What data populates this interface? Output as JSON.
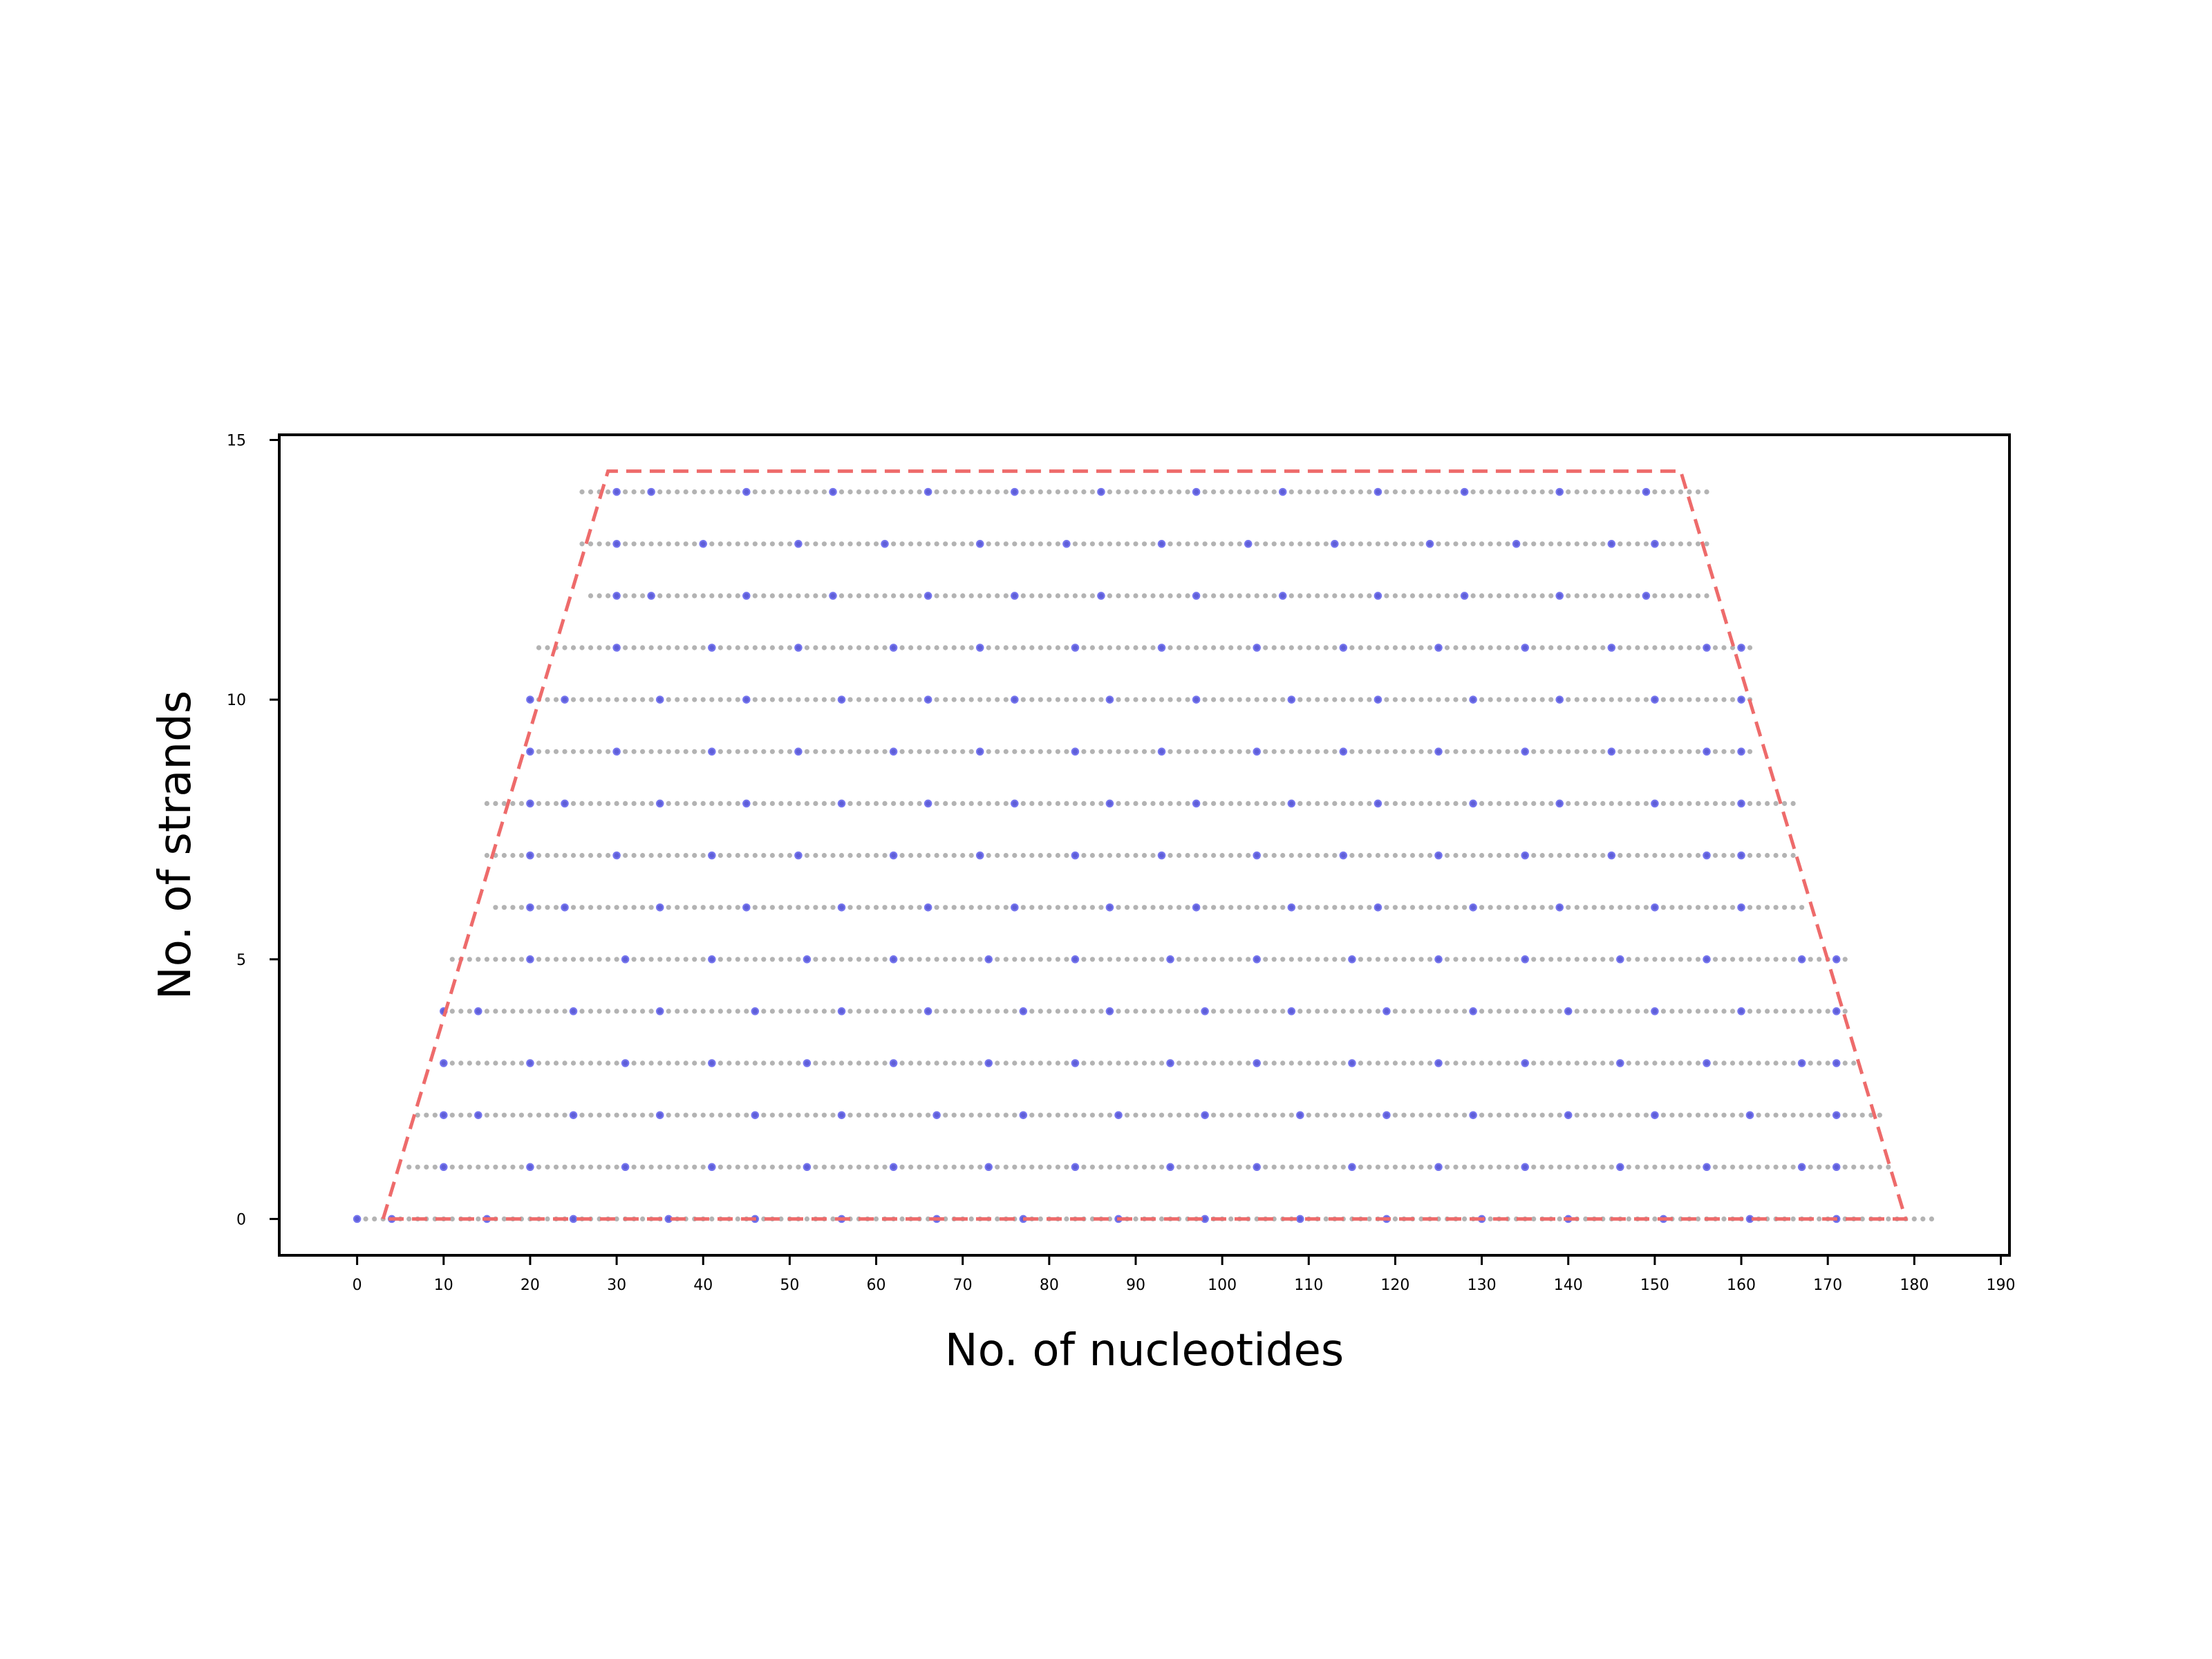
{
  "chart_data": {
    "type": "scatter",
    "title": "",
    "xlabel": "No. of nucleotides",
    "ylabel": "No. of strands",
    "xlim": [
      -9,
      191
    ],
    "ylim": [
      -0.7,
      15.1
    ],
    "x_ticks": [
      0,
      10,
      20,
      30,
      40,
      50,
      60,
      70,
      80,
      90,
      100,
      110,
      120,
      130,
      140,
      150,
      160,
      170,
      180,
      190
    ],
    "y_ticks": [
      0,
      5,
      10,
      15
    ],
    "grid": false,
    "colors": {
      "nucleotide": "#b3b3b3",
      "marker": "#3a3ae8",
      "boundary": "#ee6b6b",
      "axis": "#000000"
    },
    "rows": [
      {
        "strand": 0,
        "start": 0,
        "end": 182,
        "markers": [
          0,
          4,
          15,
          25,
          36,
          46,
          56,
          67,
          77,
          88,
          98,
          109,
          119,
          130,
          140,
          151,
          161,
          171
        ]
      },
      {
        "strand": 1,
        "start": 6,
        "end": 177,
        "markers": [
          10,
          20,
          31,
          41,
          52,
          62,
          73,
          83,
          94,
          104,
          115,
          125,
          135,
          146,
          156,
          167,
          171
        ]
      },
      {
        "strand": 2,
        "start": 7,
        "end": 176,
        "markers": [
          10,
          14,
          25,
          35,
          46,
          56,
          67,
          77,
          88,
          98,
          109,
          119,
          129,
          140,
          150,
          161,
          171
        ]
      },
      {
        "strand": 3,
        "start": 10,
        "end": 173,
        "markers": [
          10,
          20,
          31,
          41,
          52,
          62,
          73,
          83,
          94,
          104,
          115,
          125,
          135,
          146,
          156,
          167,
          171
        ]
      },
      {
        "strand": 4,
        "start": 10,
        "end": 172,
        "markers": [
          10,
          14,
          25,
          35,
          46,
          56,
          66,
          77,
          87,
          98,
          108,
          119,
          129,
          140,
          150,
          160,
          171
        ]
      },
      {
        "strand": 5,
        "start": 11,
        "end": 172,
        "markers": [
          20,
          31,
          41,
          52,
          62,
          73,
          83,
          94,
          104,
          115,
          125,
          135,
          146,
          156,
          167,
          171
        ]
      },
      {
        "strand": 6,
        "start": 16,
        "end": 167,
        "markers": [
          20,
          24,
          35,
          45,
          56,
          66,
          76,
          87,
          97,
          108,
          118,
          129,
          139,
          150,
          160
        ]
      },
      {
        "strand": 7,
        "start": 15,
        "end": 166,
        "markers": [
          20,
          30,
          41,
          51,
          62,
          72,
          83,
          93,
          104,
          114,
          125,
          135,
          145,
          156,
          160
        ]
      },
      {
        "strand": 8,
        "start": 15,
        "end": 166,
        "markers": [
          20,
          24,
          35,
          45,
          56,
          66,
          76,
          87,
          97,
          108,
          118,
          129,
          139,
          150,
          160
        ]
      },
      {
        "strand": 9,
        "start": 20,
        "end": 161,
        "markers": [
          20,
          30,
          41,
          51,
          62,
          72,
          83,
          93,
          104,
          114,
          125,
          135,
          145,
          156,
          160
        ]
      },
      {
        "strand": 10,
        "start": 20,
        "end": 161,
        "markers": [
          20,
          24,
          35,
          45,
          56,
          66,
          76,
          87,
          97,
          108,
          118,
          129,
          139,
          150,
          160
        ]
      },
      {
        "strand": 11,
        "start": 21,
        "end": 161,
        "markers": [
          30,
          41,
          51,
          62,
          72,
          83,
          93,
          104,
          114,
          125,
          135,
          145,
          156,
          160
        ]
      },
      {
        "strand": 12,
        "start": 27,
        "end": 156,
        "markers": [
          30,
          34,
          45,
          55,
          66,
          76,
          86,
          97,
          107,
          118,
          128,
          139,
          149
        ]
      },
      {
        "strand": 13,
        "start": 26,
        "end": 156,
        "markers": [
          30,
          40,
          51,
          61,
          72,
          82,
          93,
          103,
          113,
          124,
          134,
          145,
          150
        ]
      },
      {
        "strand": 14,
        "start": 26,
        "end": 156,
        "markers": [
          30,
          34,
          45,
          55,
          66,
          76,
          86,
          97,
          107,
          118,
          128,
          139,
          149
        ]
      }
    ],
    "boundary": {
      "style": "dashed",
      "points": [
        [
          3,
          0
        ],
        [
          29,
          14.4
        ],
        [
          153,
          14.4
        ],
        [
          179,
          0
        ],
        [
          3,
          0
        ]
      ]
    }
  }
}
